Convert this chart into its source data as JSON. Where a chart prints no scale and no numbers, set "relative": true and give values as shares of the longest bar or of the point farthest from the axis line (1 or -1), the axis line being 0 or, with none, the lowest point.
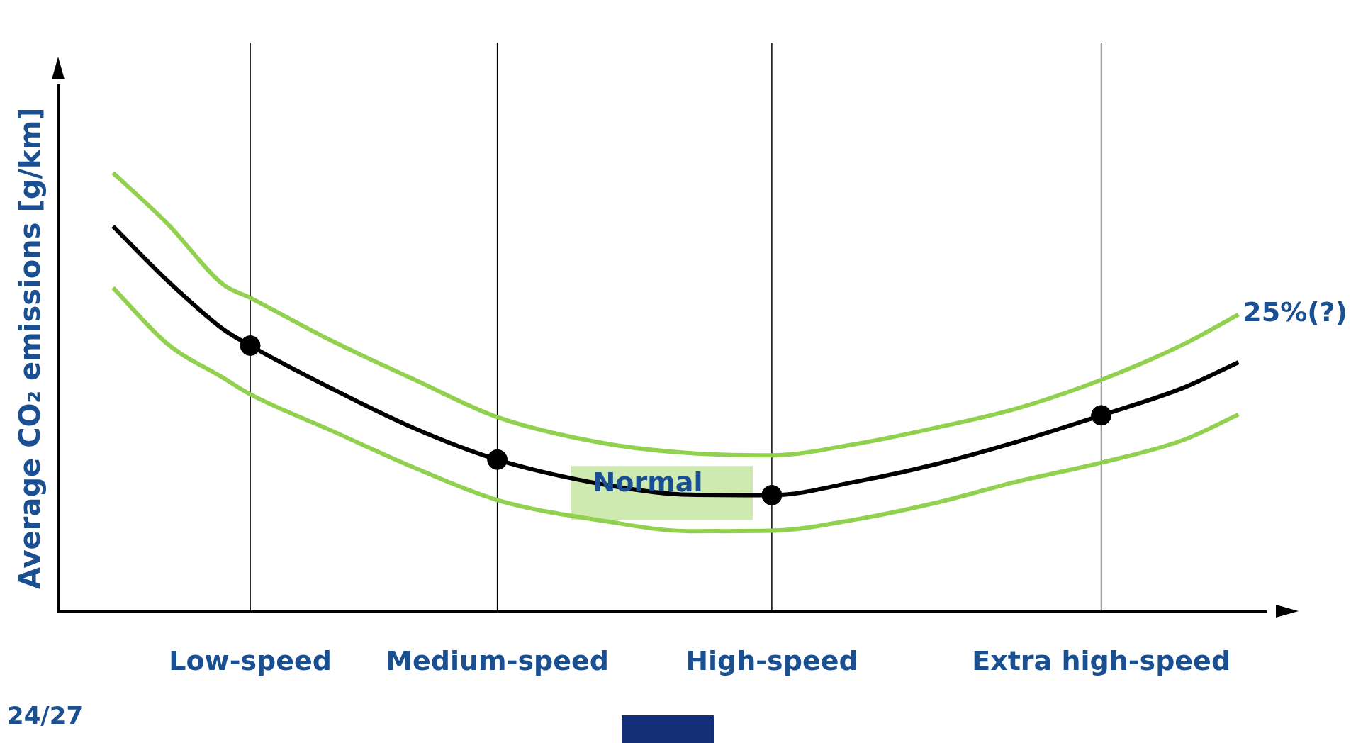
{
  "chart_data": {
    "type": "line",
    "relative": true,
    "ylabel": "Average CO₂ emissions [g/km]",
    "categories": [
      null,
      null,
      null,
      null,
      null,
      null,
      null,
      "Low-speed",
      null,
      null,
      null,
      null,
      null,
      null,
      null,
      null,
      "Medium-speed",
      null,
      null,
      null,
      null,
      null,
      null,
      null,
      null,
      null,
      "High-speed",
      null,
      null,
      null,
      null,
      null,
      null,
      null,
      null,
      null,
      null,
      null,
      "Extra high-speed",
      null,
      null,
      null,
      null,
      null,
      null
    ],
    "series": [
      {
        "type": "line",
        "color": "#92d050",
        "marker": "none",
        "values": [
          null,
          null,
          1.0,
          null,
          0.883,
          null,
          0.746,
          0.715,
          null,
          null,
          0.616,
          null,
          null,
          0.528,
          null,
          null,
          0.443,
          null,
          null,
          null,
          0.382,
          null,
          null,
          0.361,
          null,
          null,
          0.356,
          null,
          null,
          0.381,
          null,
          null,
          0.419,
          null,
          null,
          0.464,
          null,
          null,
          0.528,
          null,
          null,
          0.609,
          null,
          0.677,
          null
        ]
      },
      {
        "type": "line",
        "color": "#92d050",
        "marker": "none",
        "values": [
          null,
          null,
          0.738,
          null,
          0.609,
          null,
          0.533,
          0.495,
          null,
          null,
          0.411,
          null,
          null,
          0.327,
          null,
          null,
          0.254,
          null,
          null,
          null,
          0.205,
          null,
          null,
          0.183,
          null,
          null,
          0.184,
          null,
          null,
          0.209,
          null,
          null,
          0.248,
          null,
          null,
          0.297,
          null,
          null,
          0.339,
          null,
          null,
          0.391,
          null,
          0.449,
          null
        ]
      },
      {
        "type": "line",
        "color": "#000000",
        "marker": "none",
        "values": [
          null,
          null,
          0.878,
          null,
          0.753,
          null,
          0.644,
          0.606,
          null,
          null,
          0.507,
          null,
          null,
          0.417,
          null,
          null,
          0.346,
          null,
          null,
          null,
          0.288,
          null,
          null,
          0.266,
          null,
          null,
          0.265,
          null,
          null,
          0.295,
          null,
          null,
          0.336,
          null,
          null,
          0.388,
          null,
          null,
          0.447,
          null,
          null,
          0.51,
          null,
          0.568,
          null
        ]
      },
      {
        "type": "scatter",
        "color": "#000000",
        "marker": "circle",
        "values": [
          null,
          null,
          null,
          null,
          null,
          null,
          null,
          0.606,
          null,
          null,
          null,
          null,
          null,
          null,
          null,
          null,
          0.346,
          null,
          null,
          null,
          null,
          null,
          null,
          null,
          null,
          null,
          0.265,
          null,
          null,
          null,
          null,
          null,
          null,
          null,
          null,
          null,
          null,
          null,
          0.447,
          null,
          null,
          null,
          null,
          null,
          null
        ]
      }
    ],
    "ref_lines": [
      {
        "axis": "x",
        "value": "Low-speed",
        "color": "#000000"
      },
      {
        "axis": "x",
        "value": "Medium-speed",
        "color": "#000000"
      },
      {
        "axis": "x",
        "value": "High-speed",
        "color": "#000000"
      },
      {
        "axis": "x",
        "value": "Extra high-speed",
        "color": "#000000"
      }
    ],
    "annotations": [
      "Normal",
      "25%(?)",
      "24/27"
    ],
    "grid": false,
    "legend": false
  }
}
